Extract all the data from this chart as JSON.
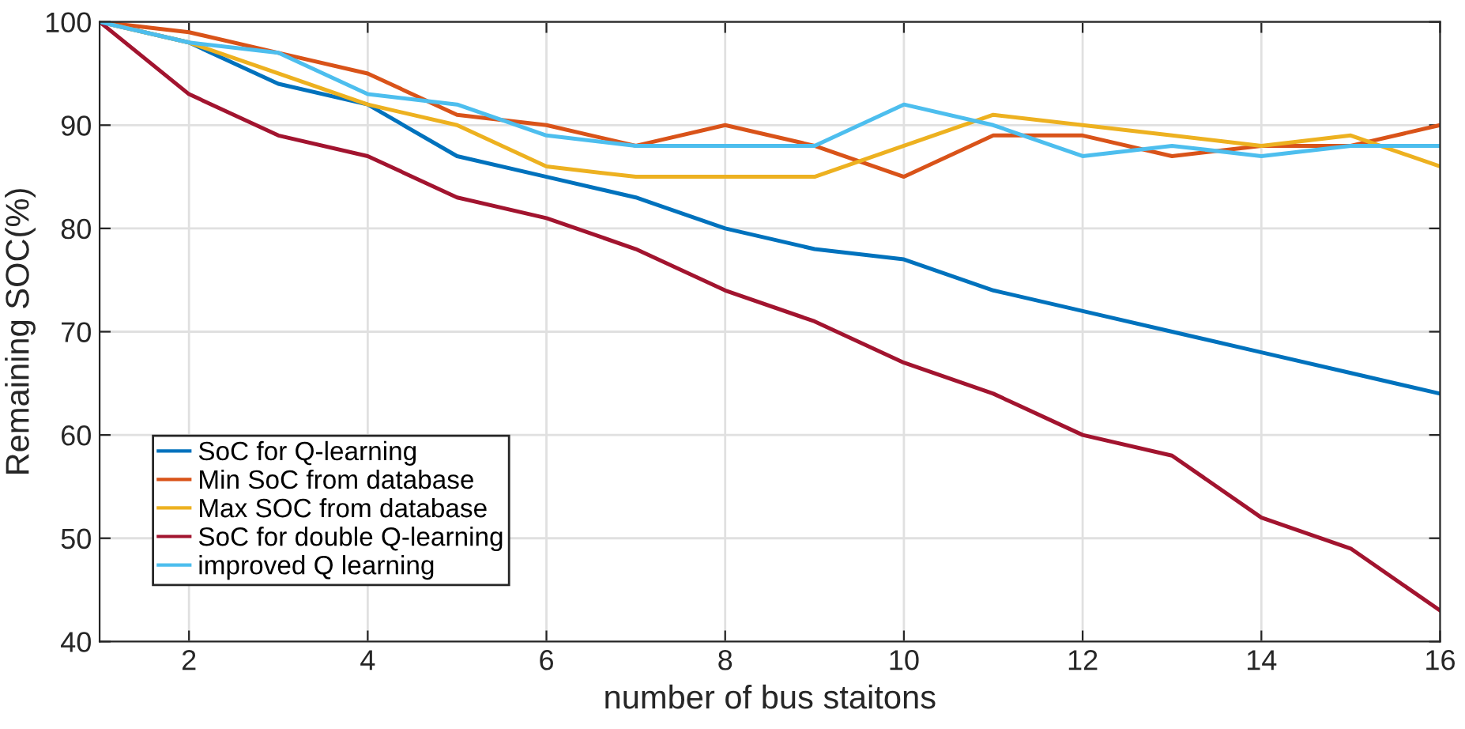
{
  "chart_data": {
    "type": "line",
    "xlabel": "number of bus staitons",
    "ylabel": "Remaining SOC(%)",
    "x": [
      1,
      2,
      3,
      4,
      5,
      6,
      7,
      8,
      9,
      10,
      11,
      12,
      13,
      14,
      15,
      16
    ],
    "series": [
      {
        "name": "SoC for Q-learning",
        "color": "#0072bd",
        "values": [
          100,
          98,
          94,
          92,
          87,
          85,
          83,
          80,
          78,
          77,
          74,
          72,
          70,
          68,
          66,
          64
        ]
      },
      {
        "name": "Min SoC from database",
        "color": "#d95319",
        "values": [
          100,
          99,
          97,
          95,
          91,
          90,
          88,
          90,
          88,
          85,
          89,
          89,
          87,
          88,
          88,
          90
        ]
      },
      {
        "name": "Max SOC from database",
        "color": "#edb120",
        "values": [
          100,
          98,
          95,
          92,
          90,
          86,
          85,
          85,
          85,
          88,
          91,
          90,
          89,
          88,
          89,
          86
        ]
      },
      {
        "name": "SoC for double Q-learning",
        "color": "#a2142f",
        "values": [
          100,
          93,
          89,
          87,
          83,
          81,
          78,
          74,
          71,
          67,
          64,
          60,
          58,
          52,
          49,
          43
        ]
      },
      {
        "name": "improved Q learning",
        "color": "#4dbeee",
        "values": [
          100,
          98,
          97,
          93,
          92,
          89,
          88,
          88,
          88,
          92,
          90,
          87,
          88,
          87,
          88,
          88
        ]
      }
    ],
    "xlim": [
      1,
      16
    ],
    "xticks": [
      2,
      4,
      6,
      8,
      10,
      12,
      14,
      16
    ],
    "ylim": [
      40,
      100
    ],
    "yticks": [
      40,
      50,
      60,
      70,
      80,
      90,
      100
    ],
    "grid": true,
    "legend": "bottom left",
    "marker": "none",
    "line_style": "solid"
  }
}
